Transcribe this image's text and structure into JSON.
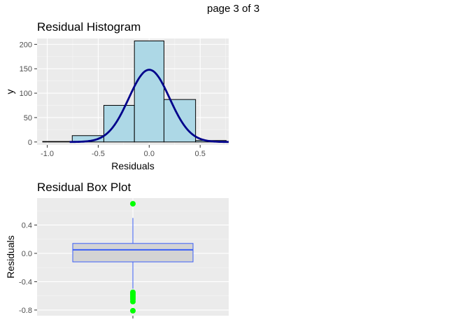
{
  "page_label": "page 3 of 3",
  "chart_data": [
    {
      "type": "bar",
      "title": "Residual Histogram",
      "xlabel": "Residuals",
      "ylabel": "y",
      "xlim": [
        -1.1,
        0.78
      ],
      "ylim": [
        -6,
        212
      ],
      "x_ticks": [
        -1.0,
        -0.5,
        0.0,
        0.5
      ],
      "x_tick_labels": [
        "-1.0",
        "-0.5",
        "0.0",
        "0.5"
      ],
      "y_ticks": [
        0,
        50,
        100,
        150,
        200
      ],
      "y_tick_labels": [
        "0",
        "50",
        "100",
        "150",
        "200"
      ],
      "grid": true,
      "bins": [
        {
          "x0": -1.045,
          "x1": -0.755,
          "count": 1
        },
        {
          "x0": -0.755,
          "x1": -0.445,
          "count": 13
        },
        {
          "x0": -0.445,
          "x1": -0.145,
          "count": 75
        },
        {
          "x0": -0.145,
          "x1": 0.145,
          "count": 207
        },
        {
          "x0": 0.145,
          "x1": 0.455,
          "count": 87
        },
        {
          "x0": 0.455,
          "x1": 0.755,
          "count": 3
        }
      ],
      "density_curve": {
        "mean": 0.0,
        "peak": 148,
        "sd": 0.2,
        "x_range": [
          -0.78,
          0.78
        ]
      },
      "colors": {
        "bar_fill": "#add8e6",
        "bar_stroke": "#000000",
        "curve": "#00008b",
        "panel": "#ebebeb"
      }
    },
    {
      "type": "box",
      "title": "Residual Box Plot",
      "xlabel": "",
      "ylabel": "Residuals",
      "ylim": [
        -0.88,
        0.78
      ],
      "y_ticks": [
        -0.8,
        -0.4,
        0.0,
        0.4
      ],
      "y_tick_labels": [
        "-0.8",
        "-0.4",
        "0.0",
        "0.4"
      ],
      "grid": true,
      "box": {
        "q1": -0.12,
        "median": 0.05,
        "q3": 0.14,
        "whisker_low": -0.5,
        "whisker_high": 0.5
      },
      "outliers": [
        0.7,
        -0.55,
        -0.57,
        -0.59,
        -0.61,
        -0.63,
        -0.65,
        -0.68,
        -0.81
      ],
      "colors": {
        "box_fill": "#d3d3d3",
        "box_stroke": "#3b5ff7",
        "outlier": "#00ff00",
        "panel": "#ebebeb"
      }
    }
  ]
}
